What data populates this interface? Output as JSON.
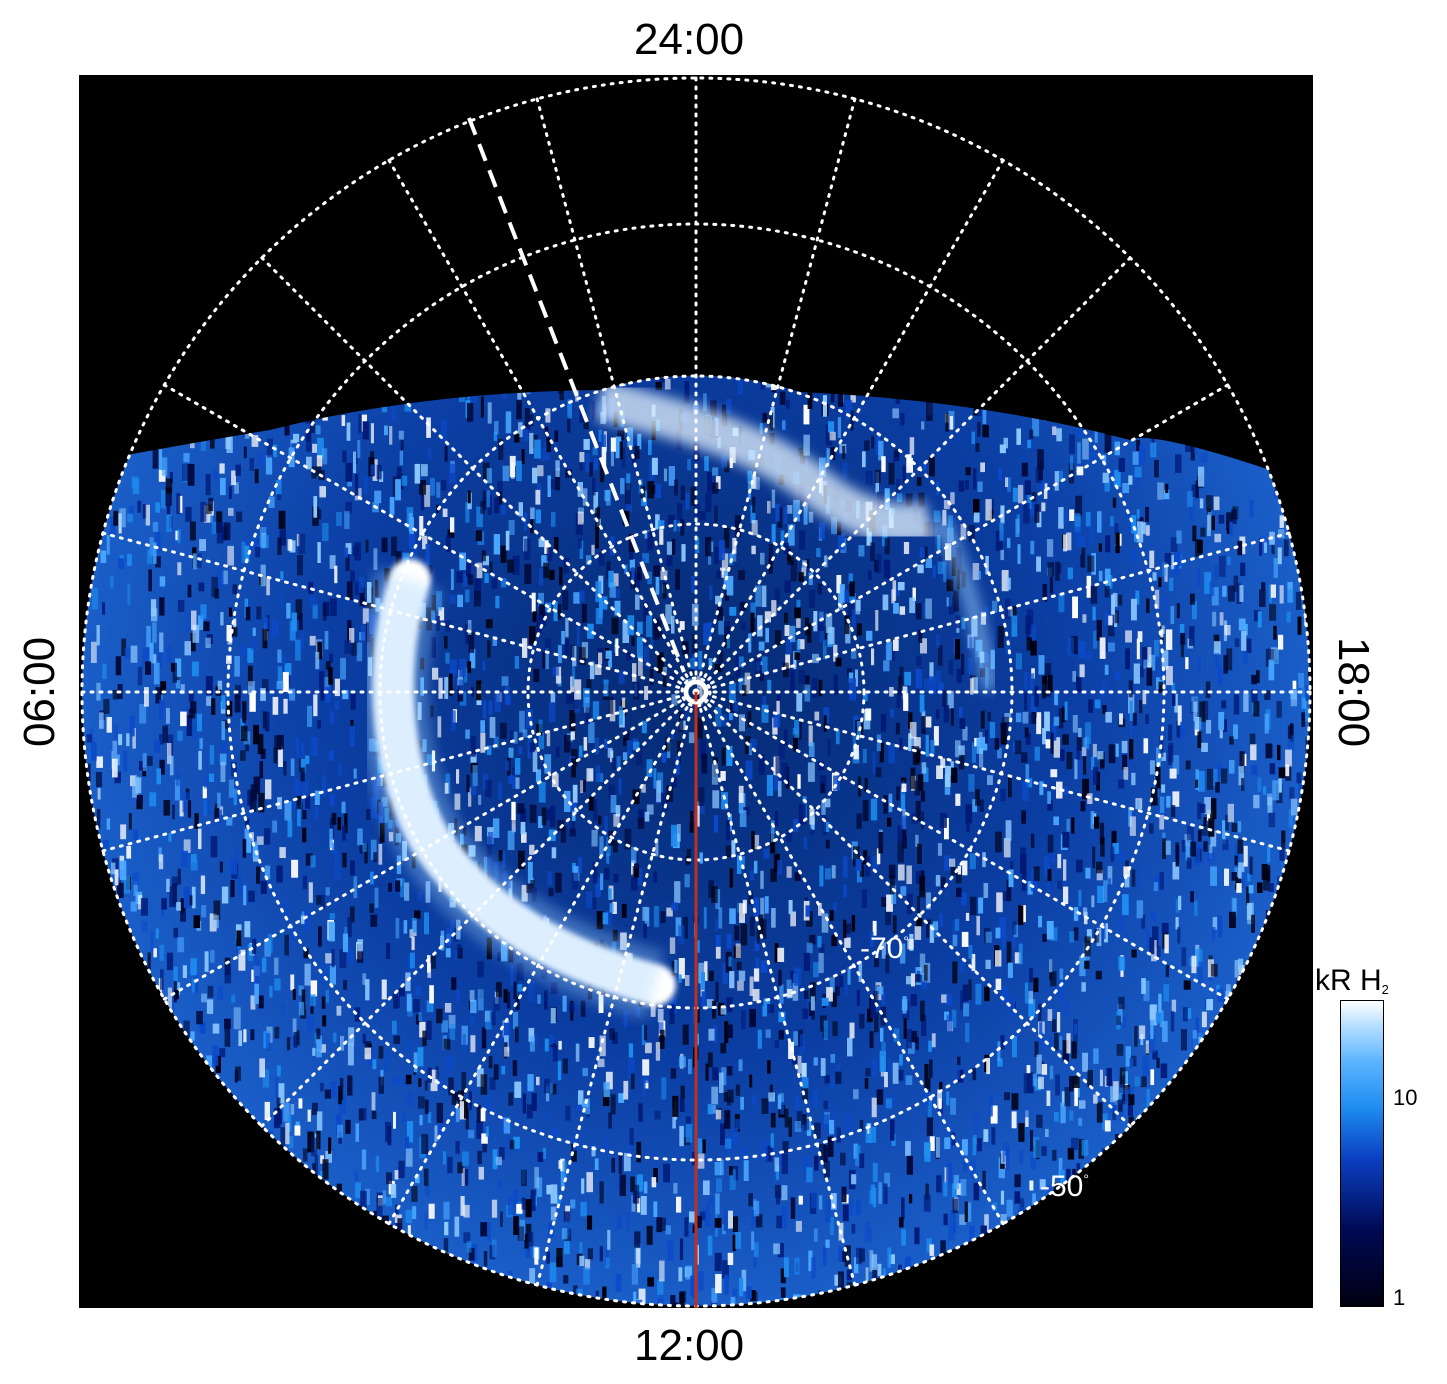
{
  "local_time_labels": {
    "top": "24:00",
    "bottom": "12:00",
    "left": "06:00",
    "right": "18:00"
  },
  "latitude_labels": {
    "inner": "-70",
    "outer": "-50",
    "degree_symbol": "°"
  },
  "colorbar": {
    "unit_main": "kR H",
    "unit_subscript": "2",
    "scale": "log",
    "range": [
      1,
      30
    ],
    "tick_labels": [
      "10",
      "1"
    ],
    "colors": [
      "#000010",
      "#000a55",
      "#0a3fc0",
      "#1e8cf0",
      "#5ab4ff",
      "#bfe3ff",
      "#ffffff"
    ]
  },
  "map": {
    "background": "#000000",
    "grid_color": "#ffffff",
    "marker_line_color": "#c0301a",
    "pole_marker_color": "#ffffff"
  }
}
